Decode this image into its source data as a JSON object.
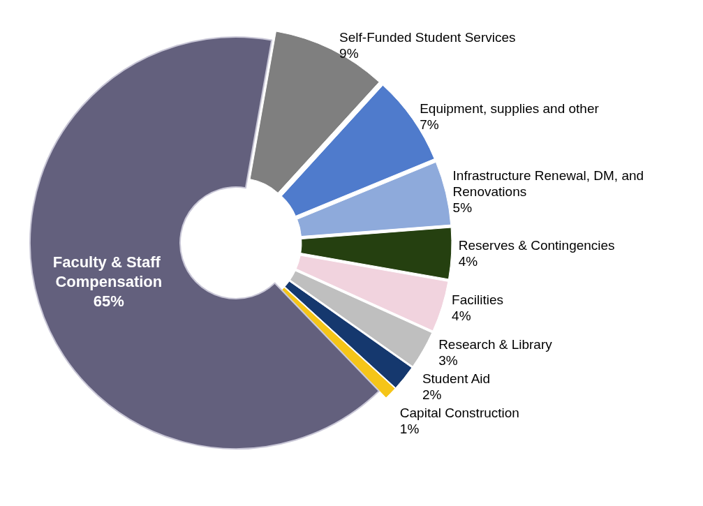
{
  "chart_data": {
    "type": "donut",
    "categories": [
      "Self-Funded Student Services",
      "Equipment, supplies and other",
      "Infrastructure Renewal, DM, and Renovations",
      "Reserves & Contingencies",
      "Facilities",
      "Research & Library",
      "Student Aid",
      "Capital Construction",
      "Faculty & Staff Compensation"
    ],
    "values": [
      9,
      7,
      5,
      4,
      4,
      3,
      2,
      1,
      65
    ],
    "colors": [
      "#7f7f7f",
      "#4f7bcc",
      "#8eaadb",
      "#254010",
      "#f1d3de",
      "#bfbfbf",
      "#15386e",
      "#f5c518",
      "#63607d"
    ],
    "value_labels": [
      "9%",
      "7%",
      "5%",
      "4%",
      "4%",
      "3%",
      "2%",
      "1%",
      "65%"
    ]
  }
}
